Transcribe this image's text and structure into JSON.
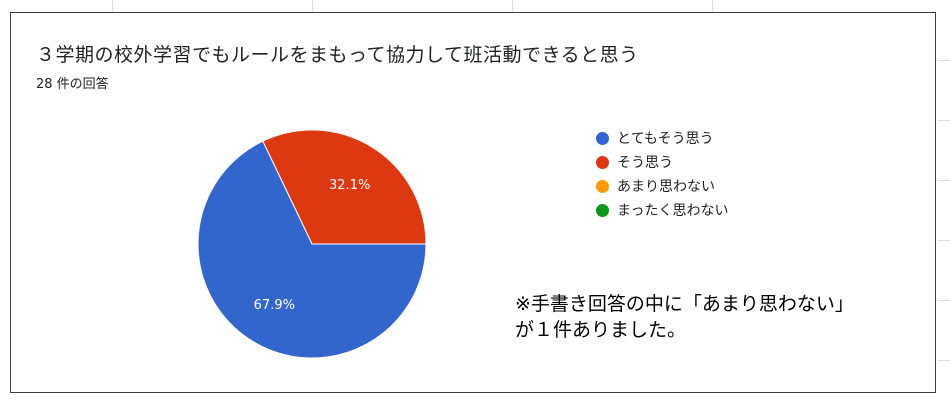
{
  "chart_data": {
    "type": "pie",
    "title": "３学期の校外学習でもルールをまもって協力して班活動できると思う",
    "subtitle": "28 件の回答",
    "categories": [
      "とてもそう思う",
      "そう思う",
      "あまり思わない",
      "まったく思わない"
    ],
    "values": [
      67.9,
      32.1,
      0,
      0
    ],
    "value_labels": [
      "67.9%",
      "32.1%",
      "",
      ""
    ],
    "colors": [
      "#3366cc",
      "#dc3912",
      "#ff9900",
      "#109618"
    ],
    "legend": "right"
  },
  "note": {
    "line1": "※手書き回答の中に「あまり思わない」",
    "line2": "が１件ありました。"
  }
}
